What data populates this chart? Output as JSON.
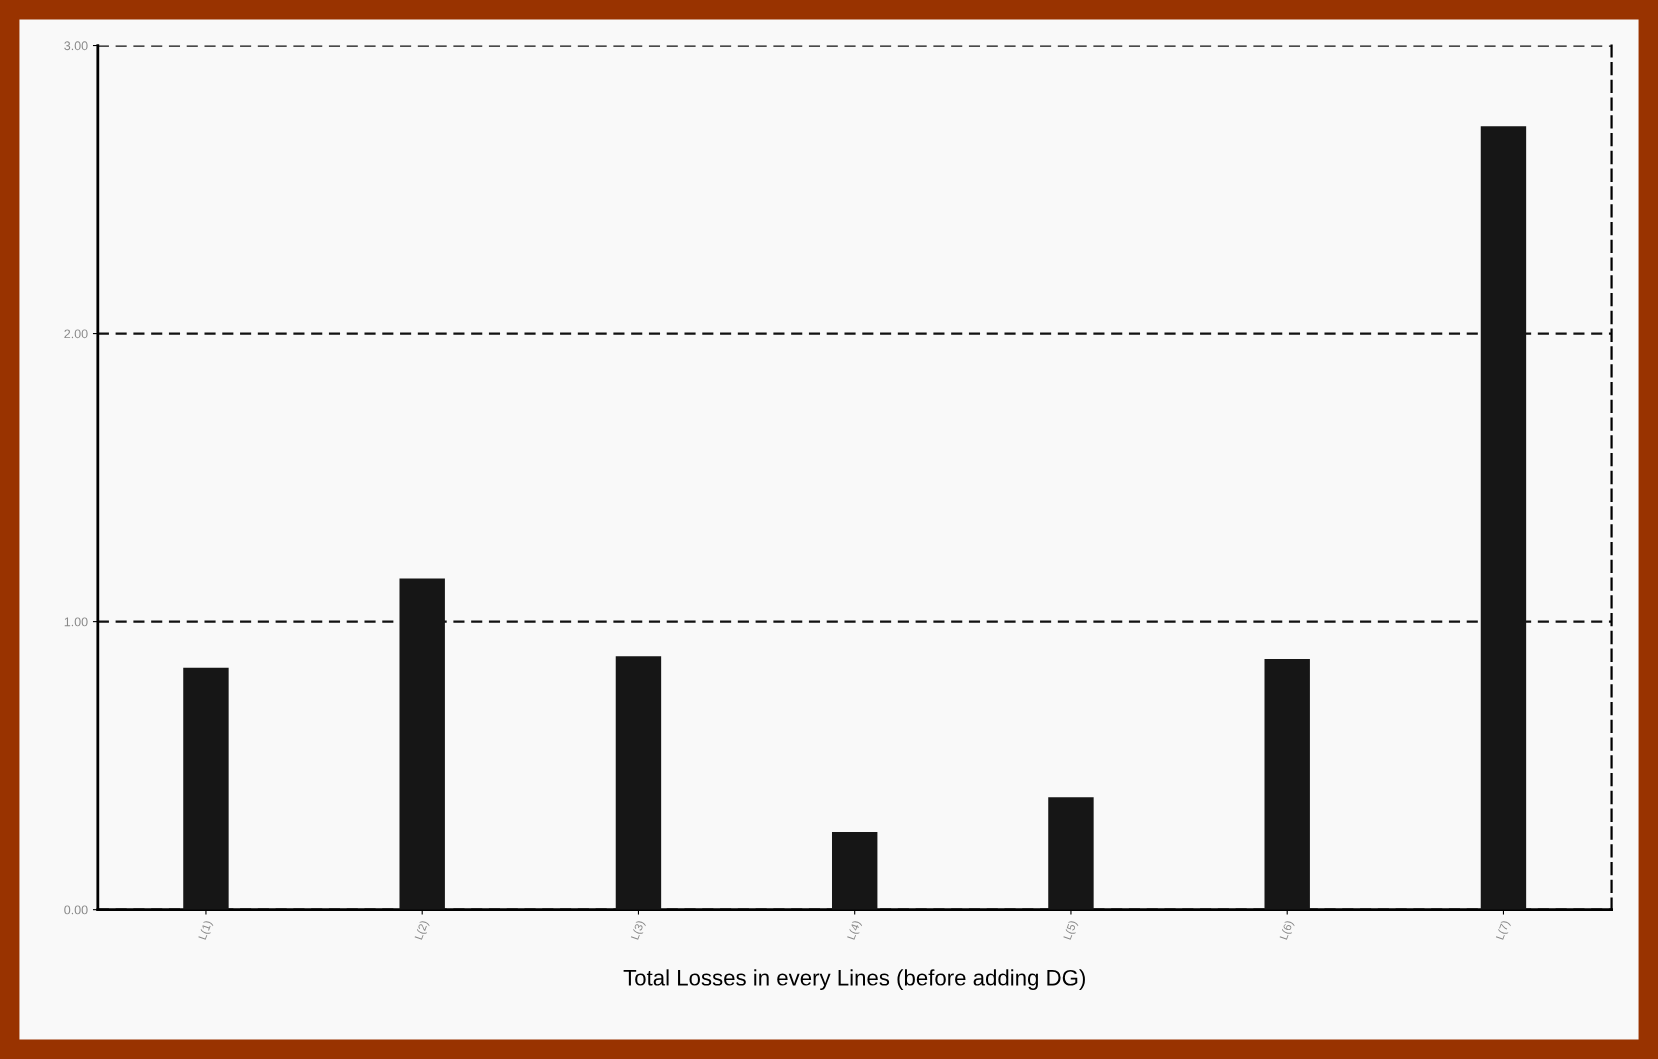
{
  "chart_data": {
    "type": "bar",
    "xlabel": "Total Losses in every Lines (before adding DG)",
    "categories": [
      "L(1)",
      "L(2)",
      "L(3)",
      "L(4)",
      "L(5)",
      "L(6)",
      "L(7)"
    ],
    "values": [
      0.84,
      1.15,
      0.88,
      0.27,
      0.39,
      0.87,
      2.72
    ],
    "color": "#161616",
    "ylim": [
      0,
      3
    ],
    "yticks": [
      {
        "value": 0,
        "label": "0.00"
      },
      {
        "value": 1,
        "label": "1.00"
      },
      {
        "value": 2,
        "label": "2.00"
      },
      {
        "value": 3,
        "label": "3.00"
      }
    ],
    "grid": "y",
    "line_style": "dashed"
  }
}
